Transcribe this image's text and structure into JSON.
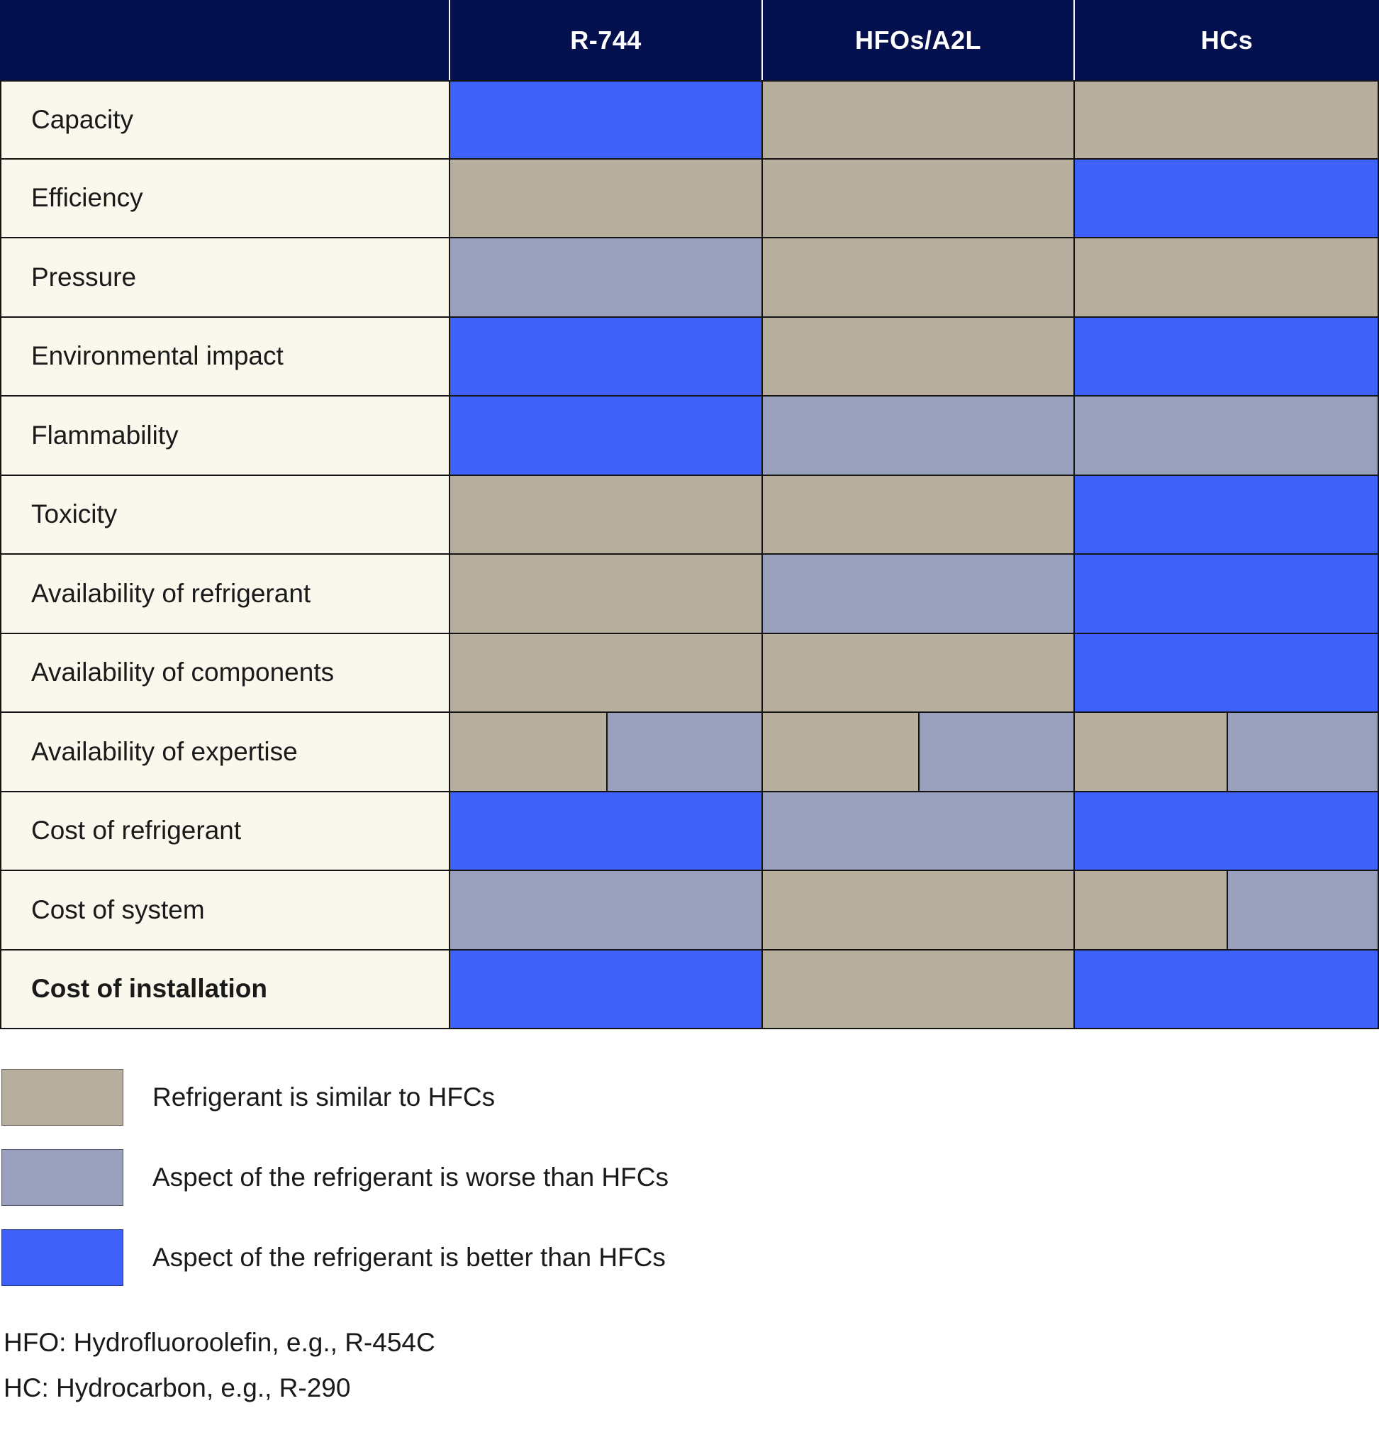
{
  "table": {
    "columns": [
      {
        "label": "R-744"
      },
      {
        "label": "HFOs/A2L"
      },
      {
        "label": "HCs"
      }
    ],
    "rows": [
      {
        "label": "Capacity",
        "bold": false,
        "cells": [
          "better",
          "similar",
          "similar"
        ]
      },
      {
        "label": "Efficiency",
        "bold": false,
        "cells": [
          "similar",
          "similar",
          "better"
        ]
      },
      {
        "label": "Pressure",
        "bold": false,
        "cells": [
          "worse",
          "similar",
          "similar"
        ]
      },
      {
        "label": "Environmental impact",
        "bold": false,
        "cells": [
          "better",
          "similar",
          "better"
        ]
      },
      {
        "label": "Flammability",
        "bold": false,
        "cells": [
          "better",
          "worse",
          "worse"
        ]
      },
      {
        "label": "Toxicity",
        "bold": false,
        "cells": [
          "similar",
          "similar",
          "better"
        ]
      },
      {
        "label": "Availability of refrigerant",
        "bold": false,
        "cells": [
          "similar",
          "worse",
          "better"
        ]
      },
      {
        "label": "Availability of components",
        "bold": false,
        "cells": [
          "similar",
          "similar",
          "better"
        ]
      },
      {
        "label": "Availability of expertise",
        "bold": false,
        "cells": [
          "similar/worse",
          "similar/worse",
          "similar/worse"
        ]
      },
      {
        "label": "Cost of refrigerant",
        "bold": false,
        "cells": [
          "better",
          "worse",
          "better"
        ]
      },
      {
        "label": "Cost of system",
        "bold": false,
        "cells": [
          "worse",
          "similar",
          "similar/worse"
        ]
      },
      {
        "label": "Cost of installation",
        "bold": true,
        "cells": [
          "better",
          "similar",
          "better"
        ]
      }
    ]
  },
  "legend": [
    {
      "key": "similar",
      "label": "Refrigerant is similar to HFCs"
    },
    {
      "key": "worse",
      "label": "Aspect of the refrigerant is worse than HFCs"
    },
    {
      "key": "better",
      "label": "Aspect of the refrigerant is better than HFCs"
    }
  ],
  "footnotes": [
    "HFO: Hydrofluoroolefin, e.g., R-454C",
    "HC: Hydrocarbon, e.g., R-290"
  ],
  "colors": {
    "similar": "#b7ae9d",
    "worse": "#99a0bd",
    "better": "#3e61fa",
    "header_bg": "#05114f",
    "header_text": "#ffffff",
    "label_bg": "#faf8ec",
    "border": "#141414",
    "text": "#1a1a1a"
  },
  "chart_data": {
    "type": "table",
    "title": "",
    "columns": [
      "R-744",
      "HFOs/A2L",
      "HCs"
    ],
    "rows": [
      "Capacity",
      "Efficiency",
      "Pressure",
      "Environmental impact",
      "Flammability",
      "Toxicity",
      "Availability of refrigerant",
      "Availability of components",
      "Availability of expertise",
      "Cost of refrigerant",
      "Cost of system",
      "Cost of installation"
    ],
    "values": [
      [
        "better",
        "similar",
        "similar"
      ],
      [
        "similar",
        "similar",
        "better"
      ],
      [
        "worse",
        "similar",
        "similar"
      ],
      [
        "better",
        "similar",
        "better"
      ],
      [
        "better",
        "worse",
        "worse"
      ],
      [
        "similar",
        "similar",
        "better"
      ],
      [
        "similar",
        "worse",
        "better"
      ],
      [
        "similar",
        "similar",
        "better"
      ],
      [
        "similar/worse",
        "similar/worse",
        "similar/worse"
      ],
      [
        "better",
        "worse",
        "better"
      ],
      [
        "worse",
        "similar",
        "similar/worse"
      ],
      [
        "better",
        "similar",
        "better"
      ]
    ],
    "value_legend": {
      "similar": "Refrigerant is similar to HFCs",
      "worse": "Aspect of the refrigerant is worse than HFCs",
      "better": "Aspect of the refrigerant is better than HFCs"
    },
    "legend_position": "below",
    "notes": [
      "HFO: Hydrofluoroolefin, e.g., R-454C",
      "HC: Hydrocarbon, e.g., R-290"
    ]
  }
}
